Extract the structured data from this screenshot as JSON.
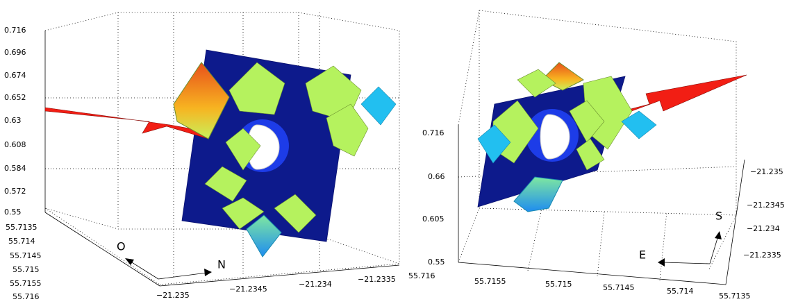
{
  "left_panel": {
    "z_ticks": [
      "0.716",
      "0.696",
      "0.674",
      "0.652",
      "0.63",
      "0.608",
      "0.584",
      "0.572",
      "0.55"
    ],
    "y_ticks": [
      "55.7135",
      "55.714",
      "55.7145",
      "55.715",
      "55.7155",
      "55.716"
    ],
    "x_ticks": [
      "−21.235",
      "−21.2345",
      "−21.234",
      "−21.2335"
    ],
    "direction_labels": [
      "O",
      "N"
    ]
  },
  "right_panel": {
    "z_ticks": [
      "0.716",
      "0.66",
      "0.605",
      "0.55"
    ],
    "x_ticks": [
      "55.716",
      "55.7155",
      "55.715",
      "55.7145",
      "55.714",
      "55.7135"
    ],
    "y_ticks": [
      "−21.235",
      "−21.2345",
      "−21.234",
      "−21.2335"
    ],
    "direction_labels": [
      "S",
      "E"
    ]
  }
}
